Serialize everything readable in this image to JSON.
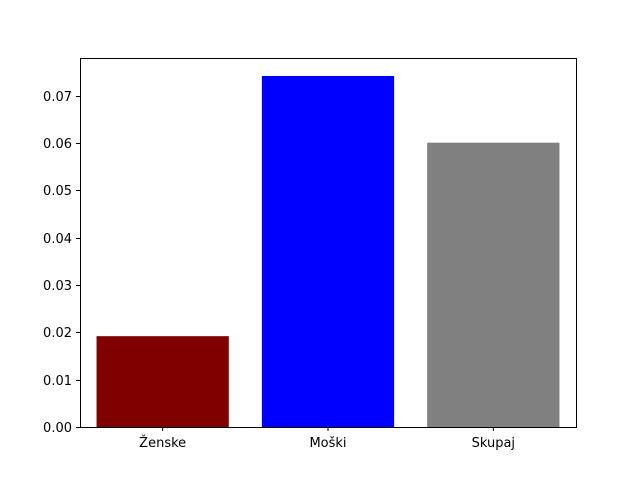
{
  "chart_data": {
    "type": "bar",
    "title": "",
    "xlabel": "",
    "ylabel": "",
    "categories": [
      "Ženske",
      "Moški",
      "Skupaj"
    ],
    "values": [
      0.0192,
      0.0742,
      0.0601
    ],
    "colors": [
      "#800000",
      "#0000ff",
      "#808080"
    ],
    "ylim": [
      0,
      0.078
    ],
    "yticks": [
      0.0,
      0.01,
      0.02,
      0.03,
      0.04,
      0.05,
      0.06,
      0.07
    ],
    "ytick_labels": [
      "0.00",
      "0.01",
      "0.02",
      "0.03",
      "0.04",
      "0.05",
      "0.06",
      "0.07"
    ],
    "grid": false,
    "legend": "none"
  }
}
